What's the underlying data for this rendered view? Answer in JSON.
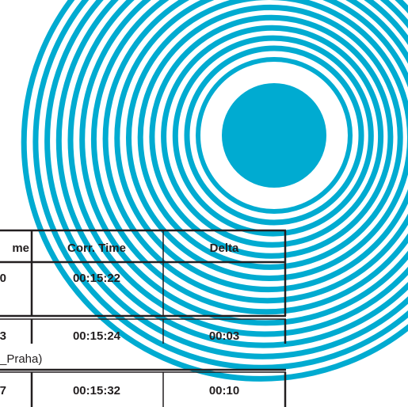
{
  "graphic": {
    "accent_color": "#00abd1",
    "background_color": "#ffffff"
  },
  "results_table": {
    "header": {
      "time_partial": "me",
      "corr_time": "Corr. Time",
      "delta": "Delta"
    },
    "rows": [
      {
        "time_partial": "0",
        "corr_time": "00:15:22",
        "delta": ""
      },
      {
        "time_partial": "3",
        "corr_time": "00:15:24",
        "delta": "00:03"
      },
      {
        "time_partial": "7",
        "corr_time": "00:15:32",
        "delta": "00:10"
      }
    ],
    "club_note": "_Praha)"
  }
}
